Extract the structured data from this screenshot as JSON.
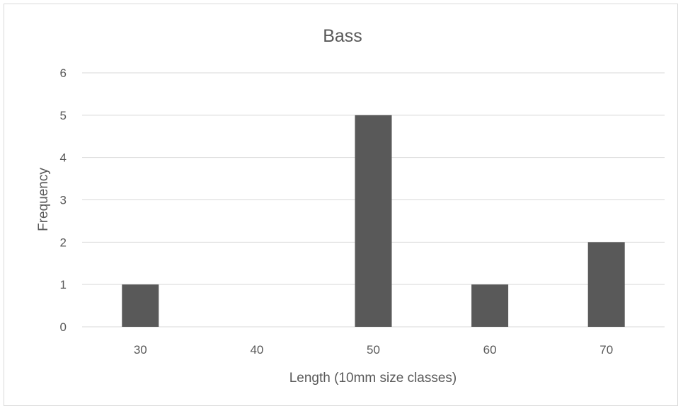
{
  "chart_data": {
    "type": "bar",
    "title": "Bass",
    "xlabel": "Length (10mm size classes)",
    "ylabel": "Frequency",
    "categories": [
      "30",
      "40",
      "50",
      "60",
      "70"
    ],
    "values": [
      1,
      0,
      5,
      1,
      2
    ],
    "ylim": [
      0,
      6
    ],
    "yticks": [
      "0",
      "1",
      "2",
      "3",
      "4",
      "5",
      "6"
    ],
    "grid": true,
    "legend": "none",
    "bar_color": "#595959",
    "grid_color": "#d9d9d9"
  }
}
